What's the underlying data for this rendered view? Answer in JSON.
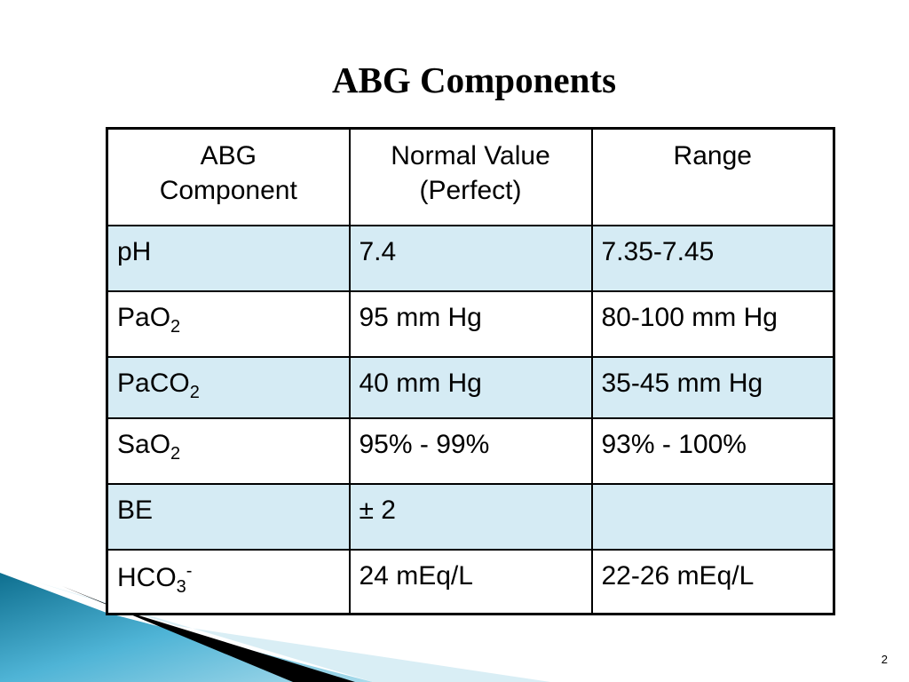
{
  "title": "ABG Components",
  "table": {
    "header": [
      [
        "ABG",
        "Component"
      ],
      [
        "Normal Value",
        "(Perfect)"
      ],
      [
        "Range"
      ]
    ],
    "rows": [
      [
        {
          "text": "pH"
        },
        "7.4",
        "7.35-7.45"
      ],
      [
        {
          "text": "PaO",
          "sub": "2"
        },
        "95 mm Hg",
        "80-100 mm Hg"
      ],
      [
        {
          "text": "PaCO",
          "sub": "2"
        },
        "40 mm Hg",
        "35-45 mm Hg"
      ],
      [
        {
          "text": "SaO",
          "sub": "2"
        },
        "95% - 99%",
        "93% - 100%"
      ],
      [
        {
          "text": "BE"
        },
        "± 2",
        null
      ],
      [
        {
          "text": "HCO",
          "sub": "3",
          "sup": "-"
        },
        "24 mEq/L",
        "22-26 mEq/L"
      ]
    ]
  },
  "page_number": "2"
}
